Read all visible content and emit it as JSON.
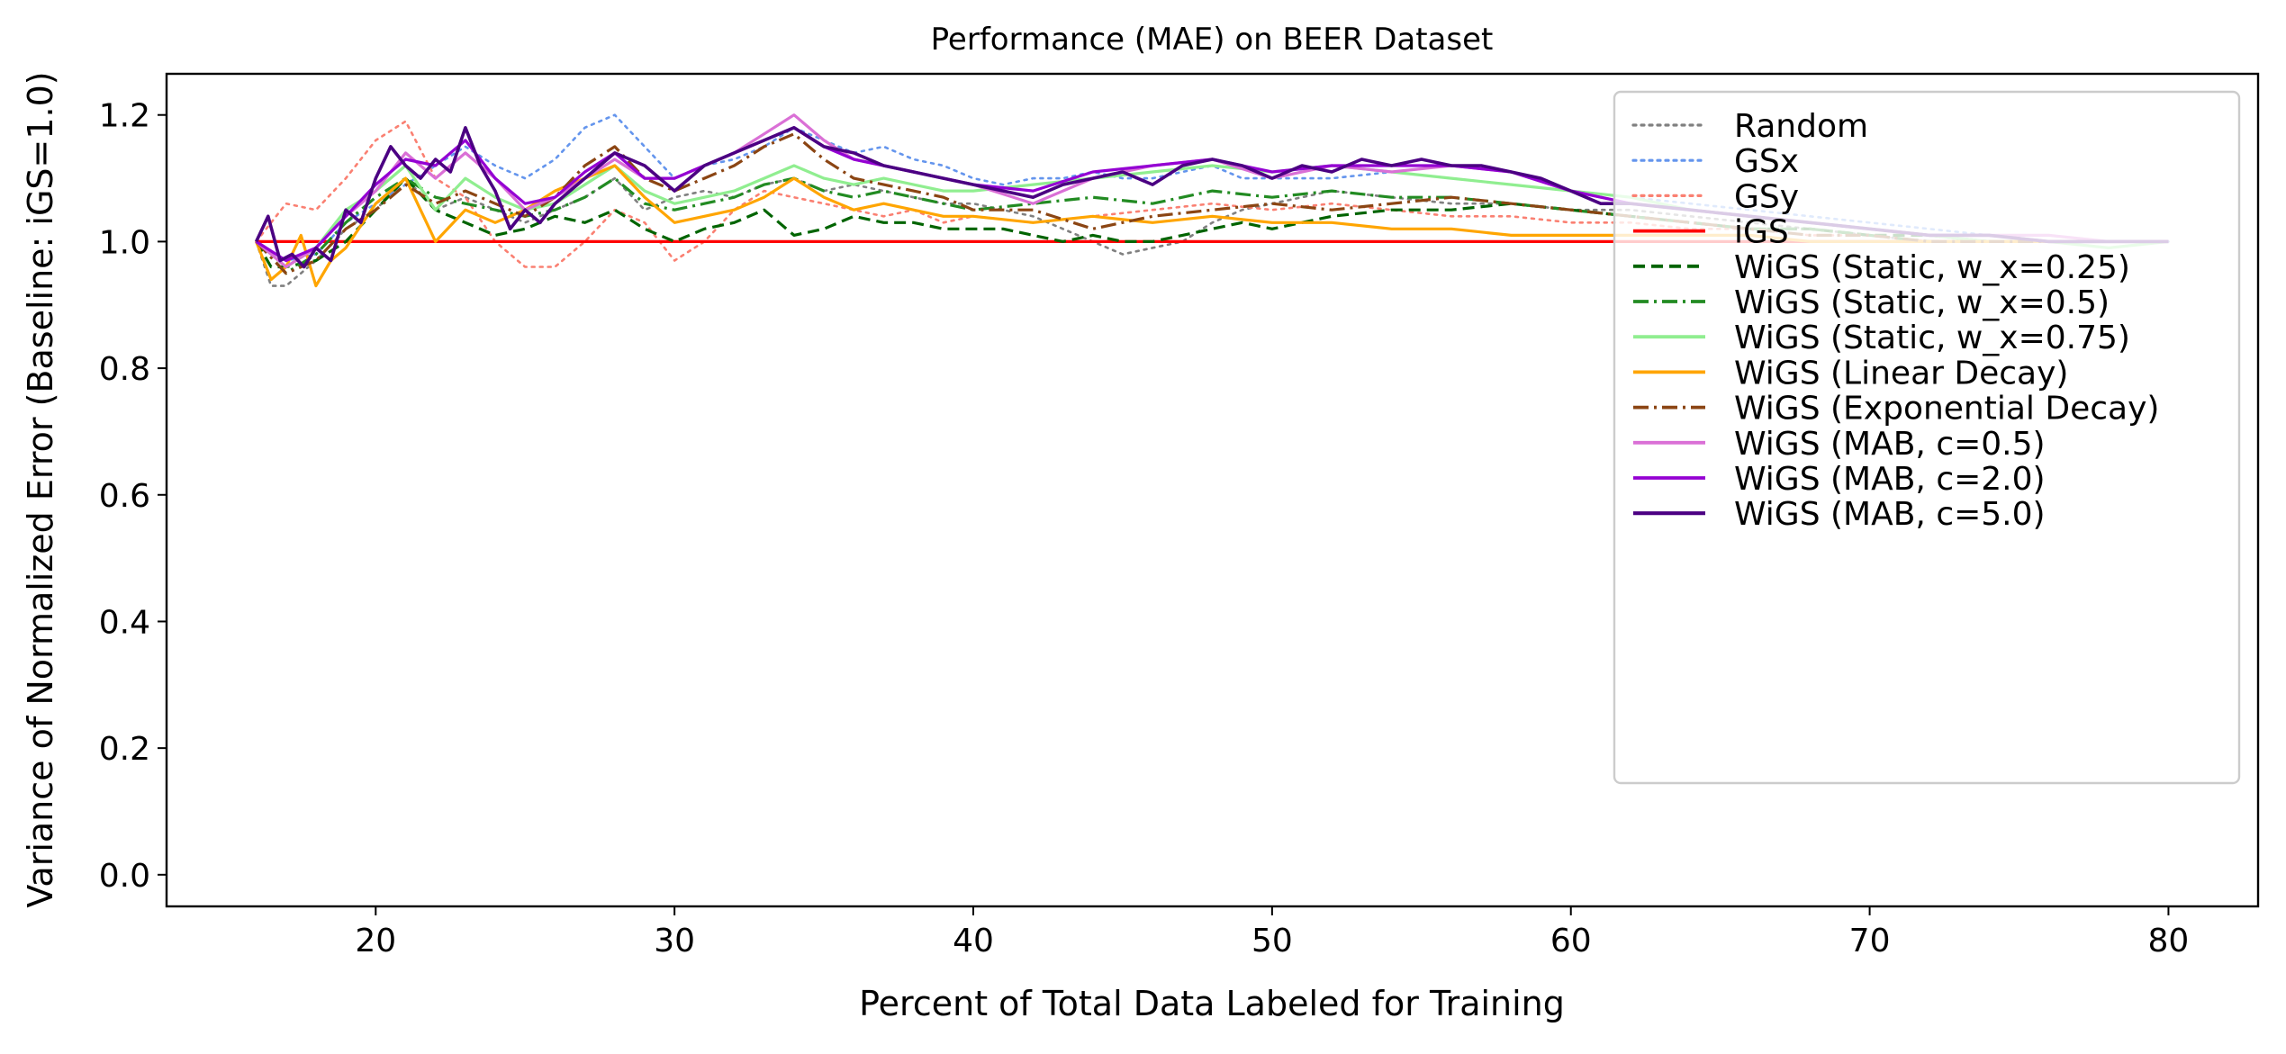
{
  "chart_data": {
    "type": "line",
    "title": "Performance (MAE) on BEER Dataset",
    "xlabel": "Percent of Total Data Labeled for Training",
    "ylabel": "Variance of Normalized Error (Baseline: iGS=1.0)",
    "xlim": [
      13,
      83
    ],
    "ylim": [
      -0.05,
      1.265
    ],
    "xticks": [
      20,
      30,
      40,
      50,
      60,
      70,
      80
    ],
    "yticks": [
      0.0,
      0.2,
      0.4,
      0.6,
      0.8,
      1.0,
      1.2
    ],
    "xtick_labels": [
      "20",
      "30",
      "40",
      "50",
      "60",
      "70",
      "80"
    ],
    "ytick_labels": [
      "0.0",
      "0.2",
      "0.4",
      "0.6",
      "0.8",
      "1.0",
      "1.2"
    ],
    "grid": false,
    "legend_position": "top-right",
    "series": [
      {
        "name": "Random",
        "color": "#808080",
        "style": "dotted",
        "width": 2.6,
        "x": [
          16,
          16.5,
          17,
          18,
          19,
          20,
          21,
          22,
          23,
          24,
          25,
          26,
          27,
          28,
          29,
          30,
          31,
          32,
          33,
          34,
          35,
          36,
          37,
          38,
          39,
          40,
          41,
          42,
          43,
          44,
          45,
          46,
          47,
          48,
          49,
          50,
          52,
          54,
          56,
          58,
          60,
          62,
          64,
          66,
          68,
          70,
          72,
          74,
          76,
          78,
          80
        ],
        "y": [
          1.0,
          0.93,
          0.93,
          0.97,
          1.02,
          1.05,
          1.1,
          1.05,
          1.07,
          1.05,
          1.03,
          1.05,
          1.07,
          1.1,
          1.05,
          1.07,
          1.08,
          1.07,
          1.09,
          1.1,
          1.08,
          1.09,
          1.08,
          1.07,
          1.06,
          1.06,
          1.05,
          1.04,
          1.02,
          1.0,
          0.98,
          0.99,
          1.0,
          1.03,
          1.05,
          1.06,
          1.08,
          1.07,
          1.06,
          1.06,
          1.05,
          1.05,
          1.04,
          1.03,
          1.02,
          1.01,
          1.0,
          1.0,
          1.0,
          1.0,
          1.0
        ]
      },
      {
        "name": "GSx",
        "color": "#6495ED",
        "style": "dotted",
        "width": 2.6,
        "x": [
          16,
          17,
          18,
          19,
          20,
          21,
          22,
          23,
          24,
          25,
          26,
          27,
          28,
          29,
          30,
          31,
          32,
          33,
          34,
          35,
          36,
          37,
          38,
          39,
          40,
          41,
          42,
          43,
          44,
          45,
          46,
          47,
          48,
          49,
          50,
          52,
          54,
          56,
          58,
          60,
          62,
          64,
          66,
          68,
          70,
          72,
          74,
          76,
          78,
          80
        ],
        "y": [
          1.0,
          0.97,
          0.98,
          1.03,
          1.06,
          1.09,
          1.12,
          1.15,
          1.12,
          1.1,
          1.13,
          1.18,
          1.2,
          1.15,
          1.1,
          1.12,
          1.13,
          1.15,
          1.18,
          1.16,
          1.14,
          1.15,
          1.13,
          1.12,
          1.1,
          1.09,
          1.1,
          1.1,
          1.11,
          1.1,
          1.1,
          1.11,
          1.12,
          1.1,
          1.1,
          1.1,
          1.11,
          1.1,
          1.09,
          1.08,
          1.07,
          1.06,
          1.05,
          1.04,
          1.03,
          1.02,
          1.01,
          1.01,
          1.0,
          1.0
        ]
      },
      {
        "name": "GSy",
        "color": "#FA8072",
        "style": "dotted",
        "width": 2.6,
        "x": [
          16,
          17,
          18,
          19,
          20,
          21,
          22,
          23,
          24,
          25,
          26,
          27,
          28,
          29,
          30,
          31,
          32,
          33,
          34,
          35,
          36,
          37,
          38,
          39,
          40,
          42,
          44,
          46,
          48,
          50,
          52,
          54,
          56,
          58,
          60,
          62,
          64,
          66,
          68,
          70,
          72,
          74,
          76,
          78,
          80
        ],
        "y": [
          1.0,
          1.06,
          1.05,
          1.1,
          1.16,
          1.19,
          1.1,
          1.07,
          1.0,
          0.96,
          0.96,
          1.0,
          1.05,
          1.03,
          0.97,
          1.0,
          1.05,
          1.08,
          1.07,
          1.06,
          1.05,
          1.04,
          1.05,
          1.03,
          1.04,
          1.03,
          1.04,
          1.05,
          1.06,
          1.05,
          1.06,
          1.05,
          1.04,
          1.04,
          1.03,
          1.03,
          1.02,
          1.02,
          1.01,
          1.01,
          1.0,
          1.0,
          1.0,
          1.0,
          1.0
        ]
      },
      {
        "name": "iGS",
        "color": "#FF0000",
        "style": "solid",
        "width": 3.2,
        "x": [
          16,
          80
        ],
        "y": [
          1.0,
          1.0
        ]
      },
      {
        "name": "WiGS (Static, w_x=0.25)",
        "color": "#006400",
        "style": "dashed",
        "width": 3.2,
        "x": [
          16,
          16.5,
          17,
          18,
          19,
          20,
          21,
          22,
          23,
          24,
          25,
          26,
          27,
          28,
          29,
          30,
          31,
          32,
          33,
          34,
          35,
          36,
          37,
          38,
          39,
          40,
          41,
          42,
          43,
          44,
          45,
          46,
          47,
          48,
          49,
          50,
          52,
          54,
          56,
          58,
          60,
          62,
          64,
          66,
          68,
          70,
          72,
          74,
          76,
          78,
          80
        ],
        "y": [
          1.0,
          0.96,
          0.96,
          0.97,
          1.0,
          1.05,
          1.1,
          1.05,
          1.03,
          1.01,
          1.02,
          1.04,
          1.03,
          1.05,
          1.02,
          1.0,
          1.02,
          1.03,
          1.05,
          1.01,
          1.02,
          1.04,
          1.03,
          1.03,
          1.02,
          1.02,
          1.02,
          1.01,
          1.0,
          1.01,
          1.0,
          1.0,
          1.01,
          1.02,
          1.03,
          1.02,
          1.04,
          1.05,
          1.05,
          1.06,
          1.05,
          1.04,
          1.03,
          1.02,
          1.02,
          1.01,
          1.01,
          1.0,
          1.0,
          1.0,
          1.0
        ]
      },
      {
        "name": "WiGS (Static, w_x=0.5)",
        "color": "#228B22",
        "style": "dashdot",
        "width": 3.2,
        "x": [
          16,
          17,
          18,
          19,
          20,
          21,
          22,
          23,
          24,
          25,
          26,
          27,
          28,
          29,
          30,
          31,
          32,
          33,
          34,
          35,
          36,
          37,
          38,
          39,
          40,
          42,
          44,
          46,
          48,
          50,
          52,
          54,
          56,
          58,
          60,
          62,
          64,
          66,
          68,
          70,
          72,
          74,
          76,
          78,
          80
        ],
        "y": [
          1.0,
          0.95,
          0.98,
          1.03,
          1.07,
          1.1,
          1.07,
          1.06,
          1.05,
          1.04,
          1.05,
          1.07,
          1.1,
          1.06,
          1.05,
          1.06,
          1.07,
          1.09,
          1.1,
          1.08,
          1.07,
          1.08,
          1.07,
          1.06,
          1.05,
          1.06,
          1.07,
          1.06,
          1.08,
          1.07,
          1.08,
          1.07,
          1.07,
          1.06,
          1.05,
          1.04,
          1.03,
          1.02,
          1.02,
          1.01,
          1.0,
          1.0,
          1.0,
          1.0,
          1.0
        ]
      },
      {
        "name": "WiGS (Static, w_x=0.75)",
        "color": "#90EE90",
        "style": "solid",
        "width": 3.2,
        "x": [
          16,
          17,
          18,
          19,
          20,
          21,
          22,
          23,
          24,
          25,
          26,
          27,
          28,
          29,
          30,
          31,
          32,
          33,
          34,
          35,
          36,
          37,
          38,
          39,
          40,
          42,
          44,
          46,
          48,
          50,
          52,
          54,
          56,
          58,
          60,
          62,
          64,
          66,
          68,
          70,
          72,
          74,
          76,
          78,
          80
        ],
        "y": [
          1.0,
          0.96,
          0.99,
          1.05,
          1.08,
          1.12,
          1.05,
          1.1,
          1.07,
          1.05,
          1.06,
          1.09,
          1.12,
          1.08,
          1.06,
          1.07,
          1.08,
          1.1,
          1.12,
          1.1,
          1.09,
          1.1,
          1.09,
          1.08,
          1.08,
          1.09,
          1.1,
          1.11,
          1.12,
          1.11,
          1.12,
          1.11,
          1.1,
          1.09,
          1.08,
          1.07,
          1.05,
          1.04,
          1.03,
          1.02,
          1.01,
          1.0,
          1.0,
          0.99,
          1.0
        ]
      },
      {
        "name": "WiGS (Linear Decay)",
        "color": "#FFA500",
        "style": "solid",
        "width": 3.2,
        "x": [
          16,
          16.5,
          17,
          17.5,
          18,
          18.5,
          19,
          20,
          21,
          22,
          23,
          24,
          25,
          26,
          27,
          28,
          29,
          30,
          31,
          32,
          33,
          34,
          35,
          36,
          37,
          38,
          39,
          40,
          42,
          44,
          46,
          48,
          50,
          52,
          54,
          56,
          58,
          60,
          62,
          64,
          66,
          68,
          70,
          72,
          74,
          76,
          78,
          80
        ],
        "y": [
          1.0,
          0.94,
          0.96,
          1.01,
          0.93,
          0.97,
          0.99,
          1.06,
          1.1,
          1.0,
          1.05,
          1.03,
          1.05,
          1.08,
          1.1,
          1.12,
          1.07,
          1.03,
          1.04,
          1.05,
          1.07,
          1.1,
          1.07,
          1.05,
          1.06,
          1.05,
          1.04,
          1.04,
          1.03,
          1.04,
          1.03,
          1.04,
          1.03,
          1.03,
          1.02,
          1.02,
          1.01,
          1.01,
          1.01,
          1.01,
          1.01,
          1.0,
          1.0,
          1.0,
          1.0,
          1.0,
          1.0,
          1.0
        ]
      },
      {
        "name": "WiGS (Exponential Decay)",
        "color": "#8B4513",
        "style": "dashdot",
        "width": 3.2,
        "x": [
          16,
          17,
          18,
          19,
          20,
          21,
          22,
          23,
          24,
          25,
          26,
          27,
          28,
          29,
          30,
          31,
          32,
          33,
          34,
          35,
          36,
          37,
          38,
          39,
          40,
          42,
          44,
          46,
          48,
          50,
          52,
          54,
          56,
          58,
          60,
          62,
          64,
          66,
          68,
          70,
          72,
          74,
          76,
          78,
          80
        ],
        "y": [
          1.0,
          0.95,
          0.97,
          1.02,
          1.05,
          1.09,
          1.06,
          1.08,
          1.06,
          1.04,
          1.07,
          1.12,
          1.15,
          1.1,
          1.08,
          1.1,
          1.12,
          1.15,
          1.17,
          1.13,
          1.1,
          1.09,
          1.08,
          1.07,
          1.05,
          1.05,
          1.02,
          1.04,
          1.05,
          1.06,
          1.05,
          1.06,
          1.07,
          1.06,
          1.05,
          1.04,
          1.03,
          1.02,
          1.01,
          1.01,
          1.0,
          1.0,
          1.0,
          1.0,
          1.0
        ]
      },
      {
        "name": "WiGS (MAB, c=0.5)",
        "color": "#DA70D6",
        "style": "solid",
        "width": 3.2,
        "x": [
          16,
          17,
          18,
          19,
          20,
          21,
          22,
          23,
          24,
          25,
          26,
          27,
          28,
          29,
          30,
          31,
          32,
          33,
          34,
          35,
          36,
          37,
          38,
          39,
          40,
          42,
          44,
          46,
          48,
          50,
          52,
          54,
          56,
          58,
          60,
          62,
          64,
          66,
          68,
          70,
          72,
          74,
          76,
          78,
          80
        ],
        "y": [
          1.0,
          0.96,
          0.99,
          1.04,
          1.08,
          1.14,
          1.1,
          1.14,
          1.1,
          1.05,
          1.07,
          1.1,
          1.13,
          1.1,
          1.1,
          1.12,
          1.14,
          1.17,
          1.2,
          1.16,
          1.13,
          1.12,
          1.11,
          1.1,
          1.09,
          1.06,
          1.1,
          1.12,
          1.13,
          1.1,
          1.12,
          1.11,
          1.12,
          1.11,
          1.08,
          1.06,
          1.05,
          1.04,
          1.03,
          1.02,
          1.01,
          1.01,
          1.01,
          1.0,
          1.0
        ]
      },
      {
        "name": "WiGS (MAB, c=2.0)",
        "color": "#9400D3",
        "style": "solid",
        "width": 3.2,
        "x": [
          16,
          17,
          18,
          19,
          20,
          21,
          22,
          23,
          24,
          25,
          26,
          27,
          28,
          29,
          30,
          31,
          32,
          33,
          34,
          35,
          36,
          37,
          38,
          39,
          40,
          42,
          44,
          46,
          48,
          50,
          52,
          54,
          56,
          58,
          60,
          62,
          64,
          66,
          68,
          70,
          72,
          74,
          76,
          78,
          80
        ],
        "y": [
          1.0,
          0.97,
          0.99,
          1.04,
          1.09,
          1.13,
          1.12,
          1.16,
          1.1,
          1.06,
          1.07,
          1.11,
          1.14,
          1.1,
          1.1,
          1.12,
          1.14,
          1.16,
          1.18,
          1.15,
          1.13,
          1.12,
          1.11,
          1.1,
          1.09,
          1.08,
          1.11,
          1.12,
          1.13,
          1.11,
          1.12,
          1.12,
          1.12,
          1.11,
          1.08,
          1.06,
          1.05,
          1.04,
          1.03,
          1.02,
          1.01,
          1.01,
          1.0,
          1.0,
          1.0
        ]
      },
      {
        "name": "WiGS (MAB, c=5.0)",
        "color": "#4B0082",
        "style": "solid",
        "width": 3.6,
        "x": [
          16,
          16.4,
          16.8,
          17.2,
          17.6,
          18,
          18.5,
          19,
          19.5,
          20,
          20.5,
          21,
          21.5,
          22,
          22.5,
          23,
          23.5,
          24,
          24.5,
          25,
          25.5,
          26,
          27,
          28,
          29,
          30,
          31,
          32,
          33,
          34,
          35,
          36,
          37,
          38,
          39,
          40,
          41,
          42,
          43,
          44,
          45,
          46,
          47,
          48,
          49,
          50,
          51,
          52,
          53,
          54,
          55,
          56,
          57,
          58,
          59,
          60,
          61,
          62,
          64,
          66,
          68,
          70,
          72,
          74,
          76,
          78,
          80
        ],
        "y": [
          1.0,
          1.04,
          0.97,
          0.98,
          0.96,
          0.99,
          0.97,
          1.05,
          1.03,
          1.1,
          1.15,
          1.12,
          1.1,
          1.13,
          1.11,
          1.18,
          1.12,
          1.08,
          1.02,
          1.05,
          1.03,
          1.06,
          1.1,
          1.14,
          1.12,
          1.08,
          1.12,
          1.14,
          1.16,
          1.18,
          1.15,
          1.14,
          1.12,
          1.11,
          1.1,
          1.09,
          1.08,
          1.07,
          1.09,
          1.1,
          1.11,
          1.09,
          1.12,
          1.13,
          1.12,
          1.1,
          1.12,
          1.11,
          1.13,
          1.12,
          1.13,
          1.12,
          1.12,
          1.11,
          1.1,
          1.08,
          1.06,
          1.06,
          1.05,
          1.04,
          1.03,
          1.02,
          1.01,
          1.01,
          1.0,
          1.0,
          1.0
        ]
      }
    ]
  }
}
